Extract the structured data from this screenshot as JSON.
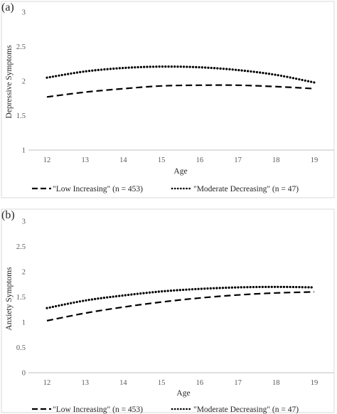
{
  "chart_data": [
    {
      "type": "line",
      "panel_label": "(a)",
      "title": "",
      "xlabel": "Age",
      "ylabel": "Depressive Symptoms",
      "x": [
        12,
        13,
        14,
        15,
        16,
        17,
        18,
        19
      ],
      "x_tick_labels": [
        "12",
        "13",
        "14",
        "15",
        "16",
        "17",
        "18",
        "19"
      ],
      "ylim": [
        1,
        3
      ],
      "y_ticks": [
        1,
        1.5,
        2,
        2.5,
        3
      ],
      "y_tick_labels": [
        "1",
        "1.5",
        "2",
        "2.5",
        "3"
      ],
      "grid": false,
      "legend_position": "bottom",
      "series": [
        {
          "name": "\"Low Increasing\" (n = 453)",
          "style": "dashed",
          "color": "#000000",
          "values": [
            1.77,
            1.84,
            1.89,
            1.93,
            1.94,
            1.94,
            1.92,
            1.89
          ]
        },
        {
          "name": "\"Moderate Decreasing\" (n = 47)",
          "style": "dotted",
          "color": "#000000",
          "values": [
            2.05,
            2.14,
            2.19,
            2.21,
            2.2,
            2.16,
            2.09,
            1.98
          ]
        }
      ]
    },
    {
      "type": "line",
      "panel_label": "(b)",
      "title": "",
      "xlabel": "Age",
      "ylabel": "Anxiety Symptoms",
      "x": [
        12,
        13,
        14,
        15,
        16,
        17,
        18,
        19
      ],
      "x_tick_labels": [
        "12",
        "13",
        "14",
        "15",
        "16",
        "17",
        "18",
        "19"
      ],
      "ylim": [
        0,
        3
      ],
      "y_ticks": [
        0,
        0.5,
        1,
        1.5,
        2,
        2.5,
        3
      ],
      "y_tick_labels": [
        "0",
        "0.5",
        "1",
        "1.5",
        "2",
        "2.5",
        "3"
      ],
      "grid": false,
      "legend_position": "bottom",
      "series": [
        {
          "name": "\"Low Increasing\" (n = 453)",
          "style": "dashed",
          "color": "#000000",
          "values": [
            1.03,
            1.18,
            1.3,
            1.4,
            1.48,
            1.54,
            1.58,
            1.6
          ]
        },
        {
          "name": "\"Moderate Decreasing\" (n = 47)",
          "style": "dotted",
          "color": "#000000",
          "values": [
            1.28,
            1.43,
            1.53,
            1.61,
            1.66,
            1.69,
            1.7,
            1.69
          ]
        }
      ]
    }
  ]
}
